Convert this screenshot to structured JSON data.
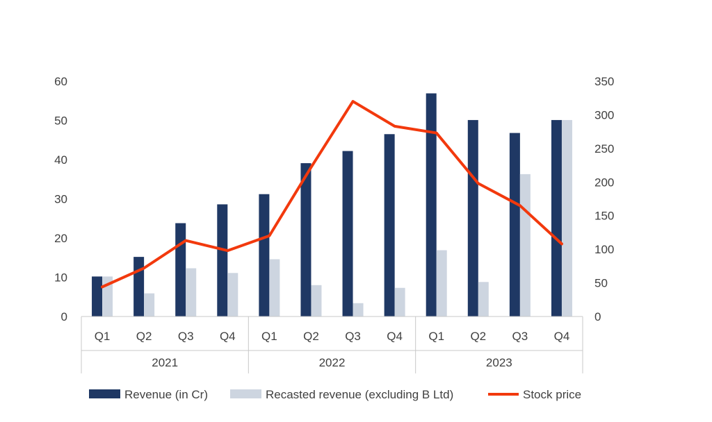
{
  "chart_data": {
    "type": "bar",
    "title": "",
    "groups": [
      {
        "label": "2021",
        "quarters": [
          "Q1",
          "Q2",
          "Q3",
          "Q4"
        ]
      },
      {
        "label": "2022",
        "quarters": [
          "Q1",
          "Q2",
          "Q3",
          "Q4"
        ]
      },
      {
        "label": "2023",
        "quarters": [
          "Q1",
          "Q2",
          "Q3",
          "Q4"
        ]
      }
    ],
    "series": [
      {
        "name": "Revenue (in Cr)",
        "type": "bar",
        "axis": "left",
        "color": "#1f3864",
        "values": [
          10.2,
          15.2,
          23.8,
          28.6,
          31.2,
          39.1,
          42.2,
          46.5,
          56.9,
          50.1,
          46.8,
          50.1
        ]
      },
      {
        "name": "Recasted revenue (excluding B Ltd)",
        "type": "bar",
        "axis": "left",
        "color": "#cdd5e0",
        "values": [
          10.2,
          5.9,
          12.3,
          11.1,
          14.6,
          8.0,
          3.4,
          7.3,
          16.9,
          8.8,
          36.3,
          50.1
        ]
      },
      {
        "name": "Stock price",
        "type": "line",
        "axis": "right",
        "color": "#f2390d",
        "values": [
          44,
          72,
          113,
          98,
          120,
          222,
          320,
          283,
          273,
          198,
          165,
          108
        ]
      }
    ],
    "y_left": {
      "min": 0,
      "max": 60,
      "ticks": [
        "0",
        "10",
        "20",
        "30",
        "40",
        "50",
        "60"
      ]
    },
    "y_right": {
      "min": 0,
      "max": 350,
      "ticks": [
        "0",
        "50",
        "100",
        "150",
        "200",
        "250",
        "300",
        "350"
      ]
    },
    "legend": {
      "position": "bottom"
    },
    "grid": false
  }
}
